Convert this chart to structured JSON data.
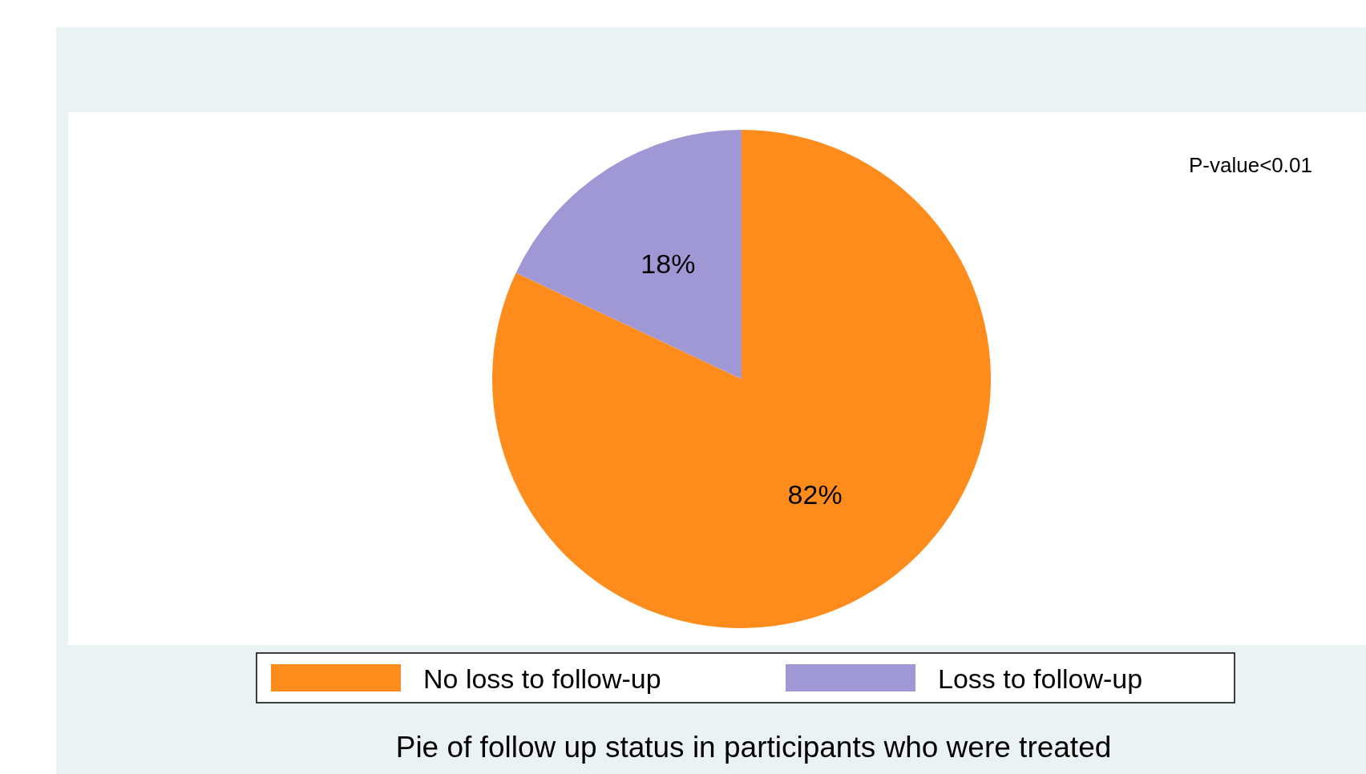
{
  "chart_data": {
    "type": "pie",
    "title": "Pie of follow up status in participants who were treated",
    "categories": [
      "No loss to follow-up",
      "Loss to follow-up"
    ],
    "values": [
      82,
      18
    ],
    "colors": [
      "#fe8c1c",
      "#9f98d5"
    ],
    "value_labels": [
      "82%",
      "18%"
    ],
    "annotations": [
      "P-value<0.01"
    ],
    "legend": "bottom"
  }
}
